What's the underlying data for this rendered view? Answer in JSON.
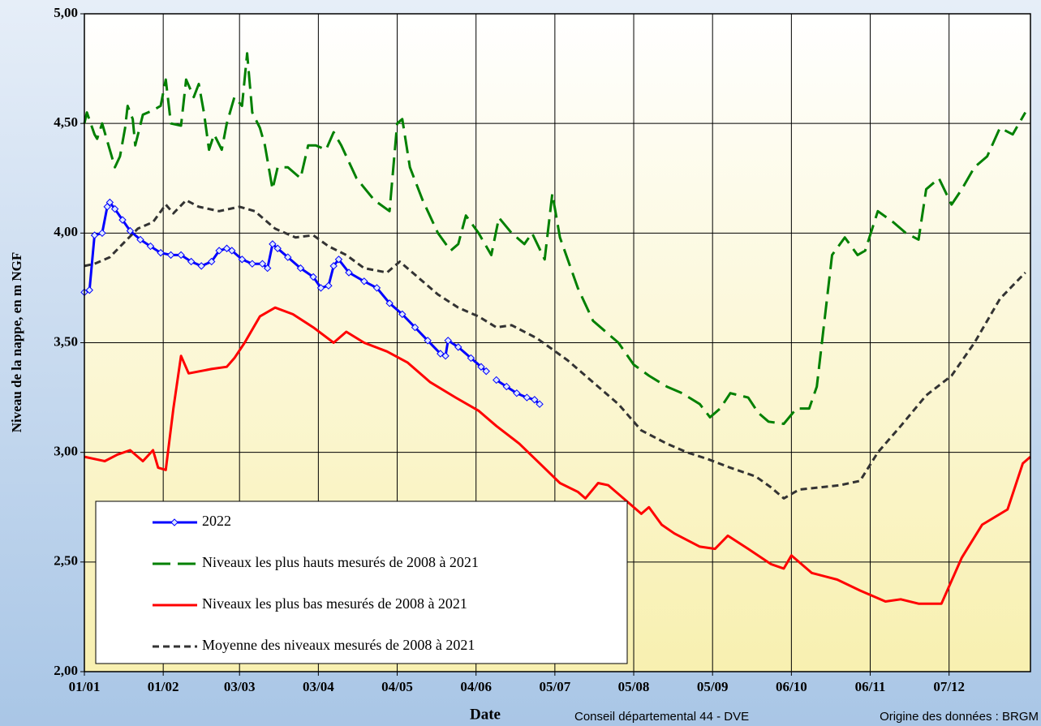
{
  "chart_data": {
    "type": "line",
    "x_label": "Date",
    "y_label": "Niveau de la nappe, en m NGF",
    "footer_left": "Conseil départemental 44 - DVE",
    "footer_right": "Origine des données : BRGM",
    "xlim": [
      0,
      372
    ],
    "xticks": [
      {
        "value": 0,
        "label": "01/01"
      },
      {
        "value": 31,
        "label": "01/02"
      },
      {
        "value": 61,
        "label": "03/03"
      },
      {
        "value": 92,
        "label": "03/04"
      },
      {
        "value": 123,
        "label": "04/05"
      },
      {
        "value": 154,
        "label": "04/06"
      },
      {
        "value": 185,
        "label": "05/07"
      },
      {
        "value": 216,
        "label": "05/08"
      },
      {
        "value": 247,
        "label": "05/09"
      },
      {
        "value": 278,
        "label": "06/10"
      },
      {
        "value": 309,
        "label": "06/11"
      },
      {
        "value": 340,
        "label": "07/12"
      }
    ],
    "ylim": [
      2,
      5
    ],
    "yticks": [
      {
        "value": 2,
        "label": "2,00"
      },
      {
        "value": 2.5,
        "label": "2,50"
      },
      {
        "value": 3,
        "label": "3,00"
      },
      {
        "value": 3.5,
        "label": "3,50"
      },
      {
        "value": 4,
        "label": "4,00"
      },
      {
        "value": 4.5,
        "label": "4,50"
      },
      {
        "value": 5,
        "label": "5,00"
      }
    ],
    "grid": true,
    "legend": "lower left",
    "series": [
      {
        "name": "2022",
        "color": "#0000ff",
        "line_style": "solid",
        "markers": true,
        "x": [
          0,
          2,
          4,
          7,
          9,
          10,
          12,
          15,
          18,
          22,
          26,
          30,
          34,
          38,
          42,
          46,
          50,
          53,
          56,
          58,
          62,
          66,
          70,
          72,
          74,
          76,
          80,
          85,
          90,
          93,
          96,
          98,
          100,
          104,
          110,
          115,
          120,
          125,
          130,
          135,
          140,
          142,
          143,
          147,
          152,
          156,
          158,
          160,
          162,
          166,
          170,
          174,
          177,
          179
        ],
        "values": [
          3.73,
          3.74,
          3.99,
          4.0,
          4.12,
          4.14,
          4.11,
          4.06,
          4.01,
          3.97,
          3.94,
          3.91,
          3.9,
          3.9,
          3.87,
          3.85,
          3.87,
          3.92,
          3.93,
          3.92,
          3.88,
          3.86,
          3.86,
          3.84,
          3.95,
          3.93,
          3.89,
          3.84,
          3.8,
          3.75,
          3.76,
          3.85,
          3.88,
          3.82,
          3.78,
          3.75,
          3.68,
          3.63,
          3.57,
          3.51,
          3.45,
          3.44,
          3.51,
          3.48,
          3.43,
          3.39,
          3.37,
          null,
          3.33,
          3.3,
          3.27,
          3.25,
          3.24,
          3.22
        ]
      },
      {
        "name": "Niveaux les plus hauts mesurés de 2008 à 2021",
        "color": "#008000",
        "line_style": "long-dash",
        "markers": false,
        "x": [
          0,
          1,
          4,
          5,
          7,
          10,
          12,
          14,
          16,
          17,
          19,
          20,
          23,
          27,
          30,
          32,
          34,
          38,
          40,
          43,
          45,
          47,
          49,
          51,
          54,
          56,
          59,
          62,
          64,
          66,
          69,
          71,
          74,
          76,
          80,
          85,
          88,
          91,
          95,
          98,
          101,
          107,
          114,
          120,
          123,
          125,
          128,
          133,
          139,
          144,
          147,
          150,
          155,
          160,
          163,
          168,
          173,
          176,
          181,
          184,
          187,
          194,
          200,
          210,
          216,
          222,
          229,
          235,
          242,
          246,
          250,
          254,
          261,
          265,
          269,
          275,
          280,
          285,
          288,
          291,
          294,
          299,
          304,
          307,
          312,
          318,
          323,
          328,
          331,
          336,
          341,
          345,
          350,
          355,
          360,
          365,
          370
        ],
        "values": [
          4.5,
          4.55,
          4.45,
          4.43,
          4.5,
          4.38,
          4.3,
          4.35,
          4.48,
          4.58,
          4.52,
          4.4,
          4.54,
          4.56,
          4.58,
          4.7,
          4.5,
          4.49,
          4.7,
          4.62,
          4.68,
          4.55,
          4.38,
          4.45,
          4.38,
          4.5,
          4.62,
          4.58,
          4.82,
          4.55,
          4.48,
          4.4,
          4.2,
          4.3,
          4.3,
          4.25,
          4.4,
          4.4,
          4.38,
          4.46,
          4.4,
          4.25,
          4.15,
          4.1,
          4.5,
          4.52,
          4.3,
          4.15,
          4.0,
          3.92,
          3.95,
          4.08,
          4.0,
          3.9,
          4.07,
          4.0,
          3.95,
          4.0,
          3.88,
          4.18,
          3.98,
          3.75,
          3.6,
          3.5,
          3.4,
          3.35,
          3.3,
          3.27,
          3.22,
          3.16,
          3.2,
          3.27,
          3.25,
          3.18,
          3.14,
          3.13,
          3.2,
          3.2,
          3.3,
          3.6,
          3.9,
          3.98,
          3.9,
          3.92,
          4.1,
          4.05,
          4.0,
          3.97,
          4.2,
          4.25,
          4.13,
          4.2,
          4.3,
          4.35,
          4.48,
          4.45,
          4.55
        ]
      },
      {
        "name": "Niveaux les plus bas mesurés de 2008 à 2021",
        "color": "#ff0000",
        "line_style": "solid",
        "markers": false,
        "x": [
          0,
          8,
          13,
          18,
          23,
          27,
          29,
          32,
          35,
          38,
          41,
          50,
          56,
          59,
          63,
          69,
          75,
          82,
          90,
          98,
          103,
          110,
          119,
          127,
          136,
          146,
          155,
          162,
          171,
          179,
          187,
          194,
          197,
          202,
          206,
          213,
          219,
          222,
          227,
          232,
          242,
          248,
          253,
          261,
          270,
          275,
          278,
          286,
          296,
          305,
          315,
          321,
          328,
          337,
          345,
          353,
          363,
          369,
          372
        ],
        "values": [
          2.98,
          2.96,
          2.99,
          3.01,
          2.96,
          3.01,
          2.93,
          2.92,
          3.2,
          3.44,
          3.36,
          3.38,
          3.39,
          3.43,
          3.5,
          3.62,
          3.66,
          3.63,
          3.57,
          3.5,
          3.55,
          3.5,
          3.46,
          3.41,
          3.32,
          3.25,
          3.19,
          3.12,
          3.04,
          2.95,
          2.86,
          2.82,
          2.79,
          2.86,
          2.85,
          2.78,
          2.72,
          2.75,
          2.67,
          2.63,
          2.57,
          2.56,
          2.62,
          2.56,
          2.49,
          2.47,
          2.53,
          2.45,
          2.42,
          2.37,
          2.32,
          2.33,
          2.31,
          2.31,
          2.52,
          2.67,
          2.74,
          2.95,
          2.98
        ]
      },
      {
        "name": "Moyenne des niveaux mesurés de 2008 à 2021",
        "color": "#333333",
        "line_style": "short-dash",
        "markers": false,
        "x": [
          0,
          4,
          10,
          15,
          21,
          27,
          32,
          35,
          40,
          45,
          53,
          61,
          67,
          75,
          83,
          90,
          96,
          103,
          110,
          119,
          124,
          131,
          139,
          147,
          155,
          162,
          168,
          178,
          184,
          190,
          200,
          210,
          219,
          229,
          237,
          245,
          254,
          264,
          270,
          275,
          281,
          289,
          297,
          305,
          312,
          321,
          331,
          341,
          350,
          360,
          370
        ],
        "values": [
          3.85,
          3.86,
          3.89,
          3.95,
          4.02,
          4.05,
          4.13,
          4.09,
          4.15,
          4.12,
          4.1,
          4.12,
          4.1,
          4.02,
          3.98,
          3.99,
          3.94,
          3.9,
          3.84,
          3.82,
          3.87,
          3.8,
          3.72,
          3.66,
          3.62,
          3.57,
          3.58,
          3.52,
          3.47,
          3.42,
          3.32,
          3.22,
          3.1,
          3.04,
          3.0,
          2.97,
          2.93,
          2.89,
          2.84,
          2.79,
          2.83,
          2.84,
          2.85,
          2.87,
          3.0,
          3.12,
          3.26,
          3.35,
          3.5,
          3.7,
          3.82
        ]
      }
    ]
  }
}
